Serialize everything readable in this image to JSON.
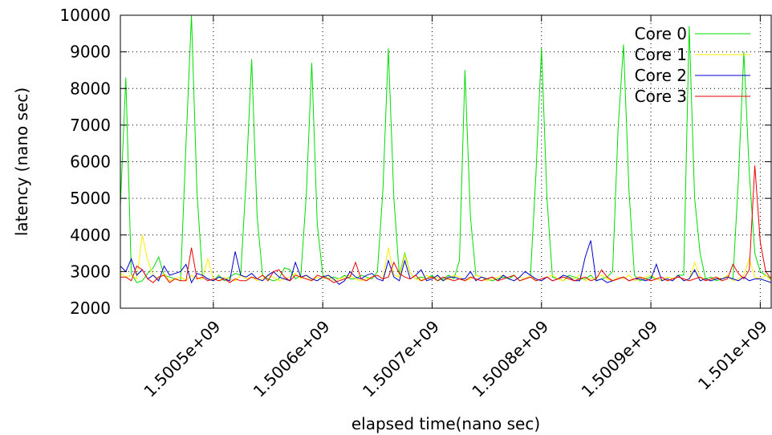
{
  "chart_data": {
    "type": "line",
    "xlabel": "elapsed time(nano sec)",
    "ylabel": "latency (nano sec)",
    "xlim": [
      1500415000,
      1501010000
    ],
    "ylim": [
      2000,
      10000
    ],
    "xticks": [
      1500500000,
      1500600000,
      1500700000,
      1500800000,
      1500900000,
      1501000000
    ],
    "xtick_labels": [
      "1.5005e+09",
      "1.5006e+09",
      "1.5007e+09",
      "1.5008e+09",
      "1.5009e+09",
      "1.501e+09"
    ],
    "yticks": [
      2000,
      3000,
      4000,
      5000,
      6000,
      7000,
      8000,
      9000,
      10000
    ],
    "ytick_labels": [
      "2000",
      "3000",
      "4000",
      "5000",
      "6000",
      "7000",
      "8000",
      "9000",
      "10000"
    ],
    "grid": true,
    "legend_position": "top-right",
    "x": [
      1500415000,
      1500420000,
      1500425000,
      1500430000,
      1500435000,
      1500440000,
      1500445000,
      1500450000,
      1500455000,
      1500460000,
      1500465000,
      1500470000,
      1500475000,
      1500480000,
      1500485000,
      1500490000,
      1500495000,
      1500500000,
      1500505000,
      1500510000,
      1500515000,
      1500520000,
      1500525000,
      1500530000,
      1500535000,
      1500540000,
      1500545000,
      1500550000,
      1500555000,
      1500560000,
      1500565000,
      1500570000,
      1500575000,
      1500580000,
      1500585000,
      1500590000,
      1500595000,
      1500600000,
      1500605000,
      1500610000,
      1500615000,
      1500620000,
      1500625000,
      1500630000,
      1500635000,
      1500640000,
      1500645000,
      1500650000,
      1500655000,
      1500660000,
      1500665000,
      1500670000,
      1500675000,
      1500680000,
      1500685000,
      1500690000,
      1500695000,
      1500700000,
      1500705000,
      1500710000,
      1500715000,
      1500720000,
      1500725000,
      1500730000,
      1500735000,
      1500740000,
      1500745000,
      1500750000,
      1500755000,
      1500760000,
      1500765000,
      1500770000,
      1500775000,
      1500780000,
      1500785000,
      1500790000,
      1500795000,
      1500800000,
      1500805000,
      1500810000,
      1500815000,
      1500820000,
      1500825000,
      1500830000,
      1500835000,
      1500840000,
      1500845000,
      1500850000,
      1500855000,
      1500860000,
      1500865000,
      1500870000,
      1500875000,
      1500880000,
      1500885000,
      1500890000,
      1500895000,
      1500900000,
      1500905000,
      1500910000,
      1500915000,
      1500920000,
      1500925000,
      1500930000,
      1500935000,
      1500940000,
      1500945000,
      1500950000,
      1500955000,
      1500960000,
      1500965000,
      1500970000,
      1500975000,
      1500980000,
      1500985000,
      1500990000,
      1500995000,
      1501000000,
      1501005000,
      1501010000
    ],
    "series": [
      {
        "name": "Core 0",
        "color": "#00dd00",
        "values": [
          4800,
          8300,
          2950,
          2700,
          2750,
          2950,
          3100,
          3400,
          2900,
          2850,
          2800,
          2750,
          6500,
          10000,
          5200,
          2900,
          2800,
          2750,
          2900,
          2750,
          2850,
          2950,
          2900,
          5500,
          8800,
          4500,
          2900,
          2800,
          2750,
          2800,
          3100,
          3050,
          2800,
          2900,
          5100,
          8700,
          4300,
          2900,
          2800,
          2850,
          2800,
          2900,
          2800,
          2800,
          2900,
          2850,
          2800,
          3000,
          5200,
          9100,
          5000,
          2900,
          3500,
          2950,
          2800,
          2850,
          2800,
          2900,
          2750,
          2800,
          2900,
          2800,
          3300,
          8500,
          4500,
          2900,
          2850,
          2800,
          2750,
          2800,
          2850,
          2800,
          2900,
          2750,
          2800,
          2900,
          5700,
          9100,
          5000,
          2850,
          2800,
          2750,
          2900,
          2850,
          2800,
          2800,
          2900,
          2750,
          2800,
          2850,
          3000,
          6900,
          9200,
          5200,
          2900,
          2750,
          2800,
          2850,
          2800,
          2750,
          2850,
          2800,
          2900,
          2900,
          9700,
          5000,
          3500,
          2800,
          2850,
          2750,
          2800,
          2850,
          2800,
          5500,
          9000,
          5700,
          3500,
          3000,
          2900,
          2800
        ]
      },
      {
        "name": "Core 1",
        "color": "#ffee00",
        "values": [
          2950,
          2850,
          2900,
          2800,
          4000,
          3300,
          2900,
          2800,
          2950,
          2750,
          2800,
          2850,
          2750,
          2900,
          2800,
          2800,
          3350,
          2800,
          2750,
          2850,
          2800,
          2750,
          2900,
          2800,
          2850,
          2750,
          2800,
          2900,
          2850,
          2750,
          2800,
          2850,
          2950,
          2800,
          2900,
          2750,
          2850,
          2800,
          2900,
          2750,
          2800,
          2850,
          2900,
          2800,
          2750,
          2800,
          2850,
          2900,
          2800,
          3650,
          2900,
          2850,
          3450,
          2950,
          2800,
          2750,
          2900,
          2800,
          2850,
          2750,
          2800,
          2900,
          2850,
          2750,
          2800,
          2900,
          2850,
          2750,
          2800,
          2850,
          2900,
          2800,
          2750,
          2850,
          2800,
          2900,
          2750,
          2800,
          2850,
          2900,
          2800,
          2750,
          2850,
          2800,
          2900,
          2750,
          2800,
          2850,
          2900,
          2800,
          2750,
          2850,
          2800,
          2900,
          2750,
          2800,
          2850,
          2900,
          2800,
          2750,
          2850,
          2800,
          2900,
          2750,
          2800,
          3250,
          2850,
          2800,
          2750,
          2850,
          2800,
          2900,
          2750,
          2800,
          2900,
          3350,
          2850,
          2800,
          2900,
          2750
        ]
      },
      {
        "name": "Core 2",
        "color": "#0000cc",
        "values": [
          3150,
          3000,
          3350,
          2900,
          3050,
          2800,
          2900,
          2750,
          3150,
          2900,
          2950,
          3000,
          3200,
          2700,
          2950,
          2900,
          2800,
          2750,
          2850,
          2800,
          2750,
          3550,
          2900,
          2850,
          2950,
          2800,
          2750,
          2900,
          3000,
          2850,
          2800,
          2750,
          3250,
          2850,
          2900,
          2800,
          2750,
          2850,
          2900,
          2800,
          2650,
          2750,
          3000,
          2850,
          2800,
          2900,
          2950,
          2800,
          2750,
          3300,
          2850,
          2750,
          3300,
          2800,
          2900,
          3050,
          2750,
          2800,
          2900,
          2750,
          2850,
          2850,
          2800,
          2800,
          3000,
          2750,
          2850,
          2800,
          2850,
          2750,
          2900,
          2800,
          2750,
          2850,
          3000,
          2900,
          2800,
          2750,
          2850,
          2750,
          2800,
          2900,
          2850,
          2750,
          2750,
          3400,
          3850,
          2750,
          2800,
          2700,
          2750,
          2800,
          2850,
          2750,
          2800,
          2800,
          2750,
          2800,
          3200,
          2750,
          2800,
          2750,
          2900,
          2750,
          2800,
          3050,
          2750,
          2800,
          2750,
          2800,
          2800,
          2850,
          2800,
          2750,
          2850,
          2750,
          2800,
          2800,
          2750,
          2700
        ]
      },
      {
        "name": "Core 3",
        "color": "#ee0000",
        "values": [
          2850,
          2850,
          2750,
          3150,
          3050,
          2800,
          2700,
          2850,
          2900,
          2700,
          2800,
          2750,
          2750,
          3650,
          2800,
          2850,
          2750,
          2800,
          2750,
          2800,
          2700,
          2800,
          2750,
          2750,
          2850,
          2800,
          2900,
          2750,
          3000,
          3050,
          2850,
          2750,
          2900,
          2850,
          2800,
          2750,
          2900,
          2850,
          2800,
          2700,
          2750,
          2800,
          2850,
          3250,
          2800,
          2750,
          2850,
          2900,
          2800,
          2850,
          3250,
          2950,
          2850,
          2800,
          2900,
          2750,
          2800,
          2850,
          2750,
          2850,
          2800,
          2750,
          2800,
          2750,
          2850,
          2800,
          2750,
          2800,
          2850,
          2750,
          2800,
          2850,
          2900,
          2750,
          2800,
          2850,
          2750,
          2800,
          2850,
          2750,
          2800,
          2850,
          2800,
          2750,
          2800,
          2850,
          2750,
          2800,
          3050,
          2850,
          2750,
          2800,
          2850,
          2750,
          2800,
          2850,
          2800,
          2750,
          2800,
          2850,
          2750,
          2800,
          2850,
          2800,
          2750,
          2800,
          2850,
          2750,
          2800,
          2850,
          2750,
          2800,
          3200,
          2950,
          2800,
          3050,
          5900,
          3800,
          3000,
          2800
        ]
      }
    ]
  }
}
